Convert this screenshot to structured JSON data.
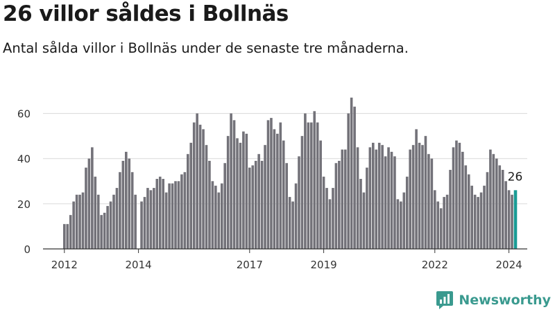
{
  "header": {
    "title": "26 villor såldes i Bollnäs",
    "subtitle": "Antal sålda villor i Bollnäs under de senaste tre månaderna."
  },
  "brand": {
    "name": "Newsworthy",
    "color": "#3a9a8f",
    "icon": "newsworthy-logo-icon"
  },
  "chart_data": {
    "type": "bar",
    "title": "26 villor såldes i Bollnäs",
    "subtitle": "Antal sålda villor i Bollnäs under de senaste tre månaderna.",
    "xlabel": "",
    "ylabel": "",
    "ylim": [
      0,
      70
    ],
    "yticks": [
      0,
      20,
      40,
      60
    ],
    "grid": true,
    "legend": "none",
    "bar_color": "#737279",
    "highlight_color": "#1a9c95",
    "x_tick_labels": [
      {
        "label": "2012",
        "index": 0
      },
      {
        "label": "2014",
        "index": 24
      },
      {
        "label": "2017",
        "index": 60
      },
      {
        "label": "2019",
        "index": 84
      },
      {
        "label": "2022",
        "index": 120
      },
      {
        "label": "2024",
        "index": 144
      }
    ],
    "highlight": {
      "index": 146,
      "label": "26"
    },
    "values": [
      11,
      11,
      15,
      21,
      24,
      24,
      25,
      36,
      40,
      45,
      32,
      24,
      15,
      16,
      19,
      21,
      24,
      27,
      34,
      39,
      43,
      40,
      34,
      24,
      null,
      21,
      23,
      27,
      26,
      27,
      31,
      32,
      31,
      25,
      29,
      29,
      30,
      30,
      33,
      34,
      42,
      47,
      56,
      60,
      55,
      53,
      46,
      39,
      30,
      28,
      25,
      29,
      38,
      50,
      60,
      57,
      49,
      47,
      52,
      51,
      36,
      37,
      39,
      42,
      39,
      46,
      57,
      58,
      53,
      51,
      56,
      48,
      38,
      23,
      21,
      29,
      41,
      50,
      60,
      56,
      56,
      61,
      56,
      48,
      32,
      27,
      22,
      27,
      38,
      39,
      44,
      44,
      60,
      67,
      63,
      45,
      31,
      25,
      36,
      45,
      47,
      44,
      47,
      46,
      41,
      45,
      43,
      41,
      22,
      21,
      25,
      32,
      44,
      46,
      53,
      47,
      46,
      50,
      42,
      40,
      26,
      21,
      18,
      23,
      24,
      35,
      45,
      48,
      47,
      43,
      37,
      33,
      28,
      24,
      23,
      25,
      28,
      34,
      44,
      42,
      40,
      37,
      35,
      30,
      26,
      24,
      26
    ]
  }
}
